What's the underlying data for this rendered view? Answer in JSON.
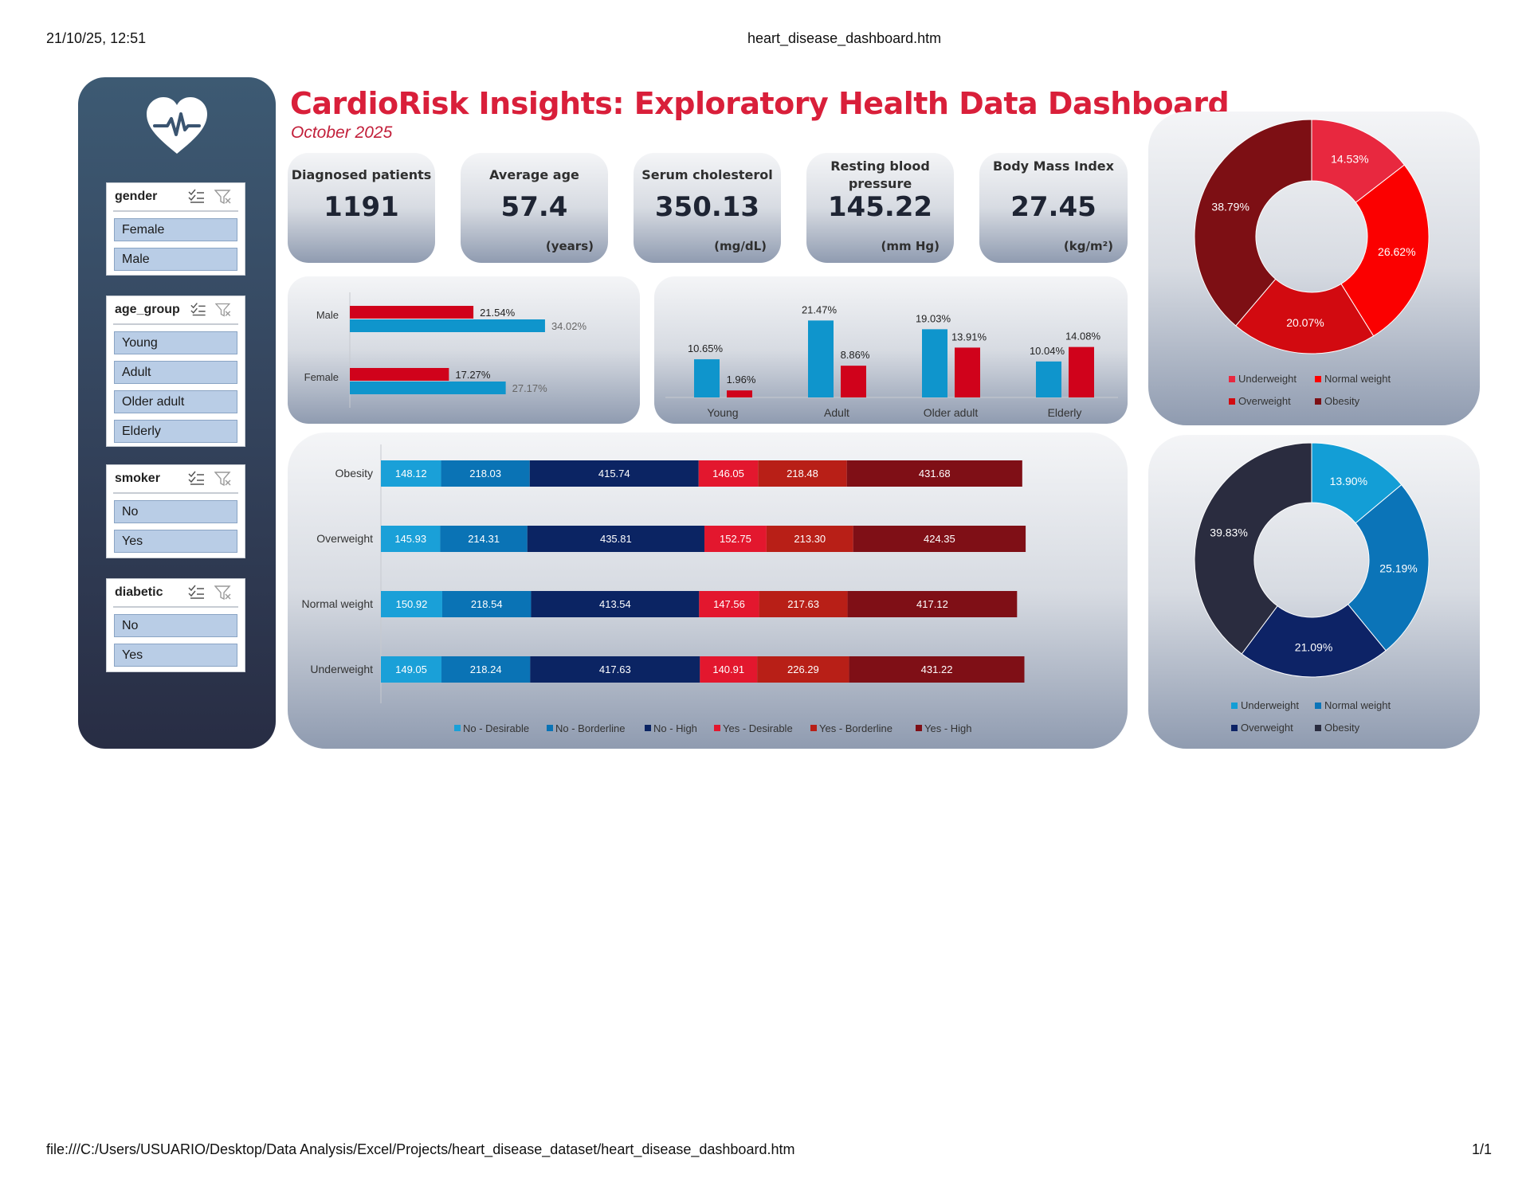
{
  "print": {
    "date": "21/10/25, 12:51",
    "doc_title": "heart_disease_dashboard.htm",
    "path": "file:///C:/Users/USUARIO/Desktop/Data Analysis/Excel/Projects/heart_disease_dataset/heart_disease_dashboard.htm",
    "page": "1/1"
  },
  "header": {
    "title": "CardioRisk Insights: Exploratory Health Data Dashboard",
    "subtitle": "October 2025"
  },
  "slicers": [
    {
      "title": "gender",
      "items": [
        "Female",
        "Male"
      ]
    },
    {
      "title": "age_group",
      "items": [
        "Young",
        "Adult",
        "Older adult",
        "Elderly"
      ]
    },
    {
      "title": "smoker",
      "items": [
        "No",
        "Yes"
      ]
    },
    {
      "title": "diabetic",
      "items": [
        "No",
        "Yes"
      ]
    }
  ],
  "kpis": [
    {
      "label": "Diagnosed patients",
      "value": "1191",
      "unit": ""
    },
    {
      "label": "Average age",
      "value": "57.4",
      "unit": "(years)"
    },
    {
      "label": "Serum cholesterol",
      "value": "350.13",
      "unit": "(mg/dL)"
    },
    {
      "label": "Resting blood pressure",
      "value": "145.22",
      "unit": "(mm Hg)"
    },
    {
      "label": "Body Mass Index",
      "value": "27.45",
      "unit": "(kg/m²)"
    }
  ],
  "colors": {
    "red": "#d0021b",
    "blue": "#0f95cc",
    "title_red": "#d91f3a"
  },
  "chart_data": [
    {
      "type": "bar",
      "orientation": "horizontal",
      "categories": [
        "Male",
        "Female"
      ],
      "series": [
        {
          "values": [
            21.54,
            17.27
          ],
          "labels": [
            "21.54%",
            "17.27%"
          ],
          "color": "#d0021b"
        },
        {
          "values": [
            34.02,
            27.17
          ],
          "labels": [
            "34.02%",
            "27.17%"
          ],
          "color": "#0f95cc"
        }
      ],
      "xlim": [
        0,
        40
      ]
    },
    {
      "type": "bar",
      "orientation": "vertical",
      "categories": [
        "Young",
        "Adult",
        "Older adult",
        "Elderly"
      ],
      "series": [
        {
          "values": [
            10.65,
            21.47,
            19.03,
            10.04
          ],
          "labels": [
            "10.65%",
            "21.47%",
            "19.03%",
            "10.04%"
          ],
          "color": "#0f95cc"
        },
        {
          "values": [
            1.96,
            8.86,
            13.91,
            14.08
          ],
          "labels": [
            "1.96%",
            "8.86%",
            "13.91%",
            "14.08%"
          ],
          "color": "#d0021b"
        }
      ],
      "ylim": [
        0,
        24
      ]
    },
    {
      "type": "bar",
      "orientation": "horizontal",
      "stacked": true,
      "categories": [
        "Obesity",
        "Overweight",
        "Normal weight",
        "Underweight"
      ],
      "series": [
        {
          "name": "No - Desirable",
          "color": "#1aa0d8",
          "values": [
            148.12,
            145.93,
            150.92,
            149.05
          ]
        },
        {
          "name": "No - Borderline",
          "color": "#0a73b5",
          "values": [
            218.03,
            214.31,
            218.54,
            218.24
          ]
        },
        {
          "name": "No - High",
          "color": "#0b2463",
          "values": [
            415.74,
            435.81,
            413.54,
            417.63
          ]
        },
        {
          "name": "Yes - Desirable",
          "color": "#e3172e",
          "values": [
            146.05,
            152.75,
            147.56,
            140.91
          ]
        },
        {
          "name": "Yes - Borderline",
          "color": "#b81f17",
          "values": [
            218.48,
            213.3,
            217.63,
            226.29
          ]
        },
        {
          "name": "Yes - High",
          "color": "#7f0f16",
          "values": [
            431.68,
            424.35,
            417.12,
            431.22
          ]
        }
      ],
      "value_labels": [
        [
          "148.12",
          "218.03",
          "415.74",
          "146.05",
          "218.48",
          "431.68"
        ],
        [
          "145.93",
          "214.31",
          "435.81",
          "152.75",
          "213.30",
          "424.35"
        ],
        [
          "150.92",
          "218.54",
          "413.54",
          "147.56",
          "217.63",
          "417.12"
        ],
        [
          "149.05",
          "218.24",
          "417.63",
          "140.91",
          "226.29",
          "431.22"
        ]
      ],
      "legend": "bottom"
    },
    {
      "type": "pie",
      "donut": true,
      "categories": [
        "Underweight",
        "Normal weight",
        "Overweight",
        "Obesity"
      ],
      "values": [
        14.53,
        26.62,
        20.07,
        38.79
      ],
      "labels": [
        "14.53%",
        "26.62%",
        "20.07%",
        "38.79%"
      ],
      "colors": [
        "#e8283f",
        "#fb0000",
        "#d20a10",
        "#7d0f14"
      ],
      "legend": "bottom"
    },
    {
      "type": "pie",
      "donut": true,
      "categories": [
        "Underweight",
        "Normal weight",
        "Overweight",
        "Obesity"
      ],
      "values": [
        13.9,
        25.19,
        21.09,
        39.83
      ],
      "labels": [
        "13.90%",
        "25.19%",
        "21.09%",
        "39.83%"
      ],
      "colors": [
        "#139ed6",
        "#0b74b8",
        "#0d2366",
        "#2a2c3f"
      ],
      "legend": "bottom"
    }
  ]
}
